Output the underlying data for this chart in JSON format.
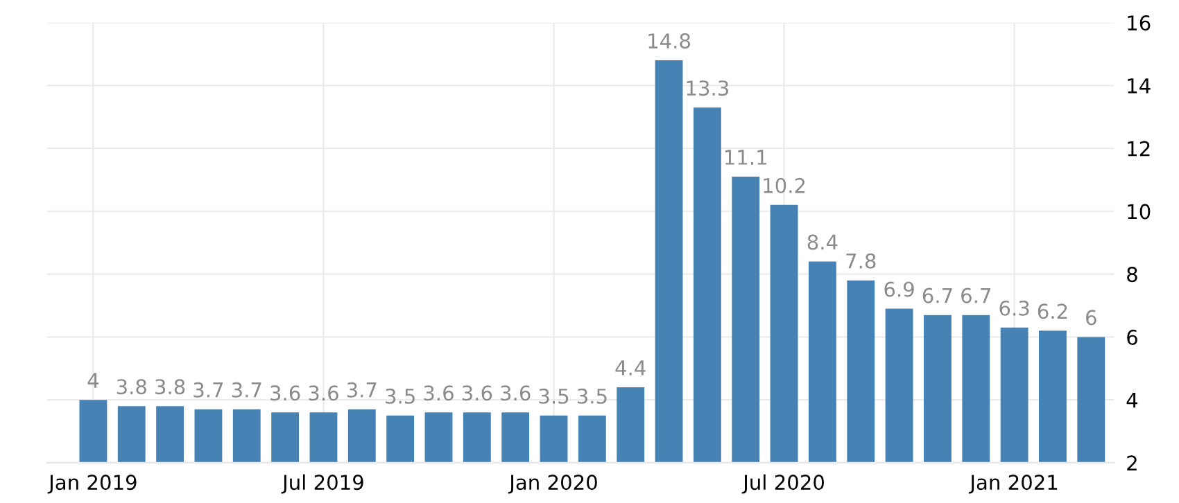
{
  "chart_data": {
    "type": "bar",
    "categories": [
      "Jan 2019",
      null,
      null,
      null,
      null,
      null,
      "Jul 2019",
      null,
      null,
      null,
      null,
      null,
      "Jan 2020",
      null,
      null,
      null,
      null,
      null,
      "Jul 2020",
      null,
      null,
      null,
      null,
      null,
      "Jan 2021",
      null,
      null
    ],
    "values": [
      4,
      3.8,
      3.8,
      3.7,
      3.7,
      3.6,
      3.6,
      3.7,
      3.5,
      3.6,
      3.6,
      3.6,
      3.5,
      3.5,
      4.4,
      14.8,
      13.3,
      11.1,
      10.2,
      8.4,
      7.8,
      6.9,
      6.7,
      6.7,
      6.3,
      6.2,
      6
    ],
    "color": "#4682b4",
    "ylim": [
      2,
      16
    ],
    "yticks": [
      2,
      4,
      6,
      8,
      10,
      12,
      14,
      16
    ],
    "grid": true,
    "data_labels": true
  }
}
